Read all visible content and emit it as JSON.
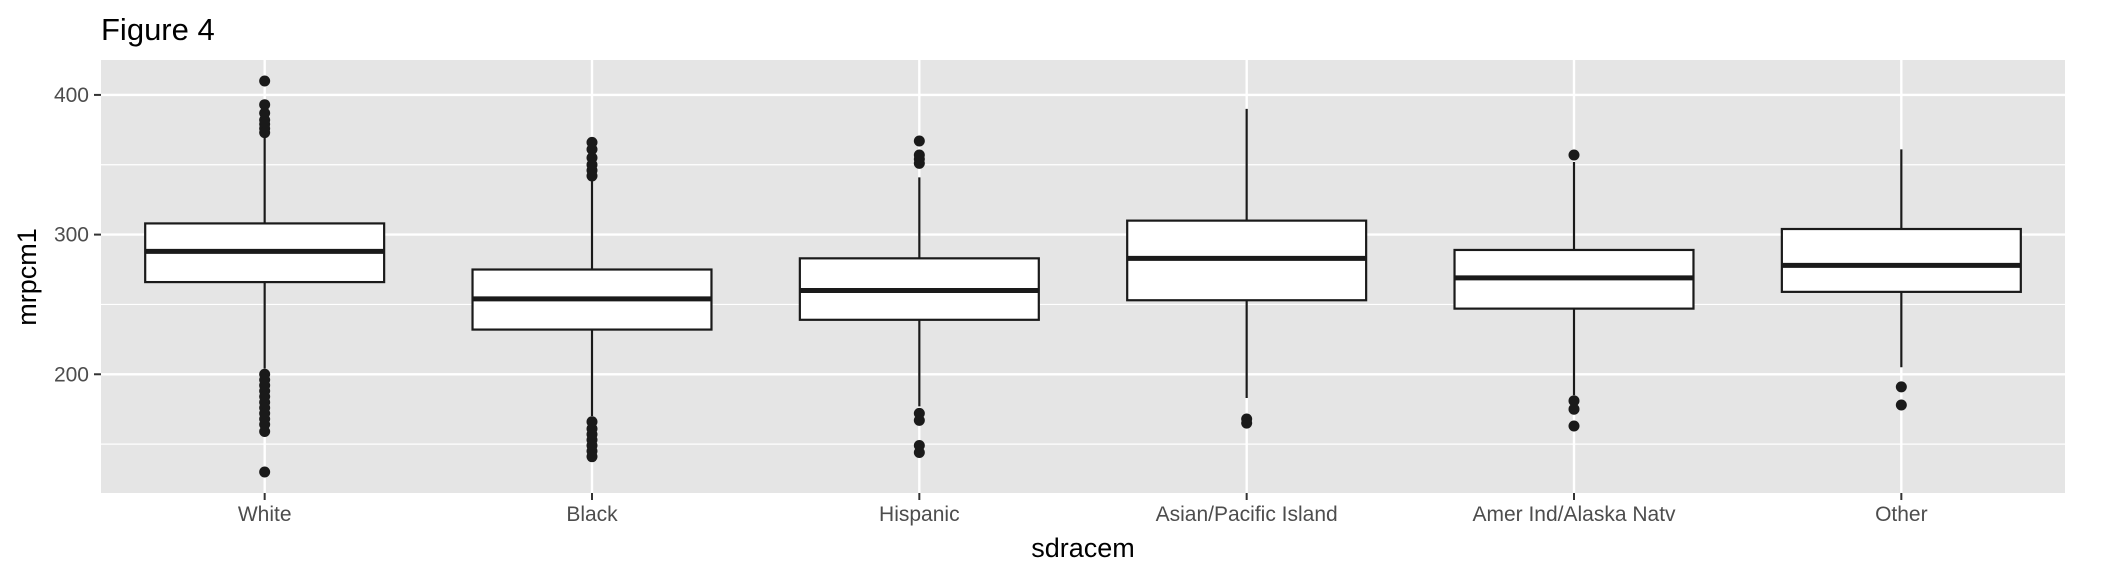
{
  "chart_data": {
    "type": "boxplot",
    "title": "Figure 4",
    "xlabel": "sdracem",
    "ylabel": "mrpcm1",
    "ylim": [
      115,
      425
    ],
    "yticks": [
      200,
      300,
      400
    ],
    "grid": true,
    "legend": "none",
    "colors": {
      "panel": "#e5e5e5",
      "grid": "#ffffff",
      "box_fill": "#ffffff",
      "box_stroke": "#1a1a1a",
      "points": "#1a1a1a",
      "tick_text": "#4d4d4d"
    },
    "categories": [
      "White",
      "Black",
      "Hispanic",
      "Asian/Pacific Island",
      "Amer Ind/Alaska Natv",
      "Other"
    ],
    "boxes": [
      {
        "category": "White",
        "q1": 266,
        "median": 288,
        "q3": 308,
        "whisker_low": 204,
        "whisker_high": 371,
        "outliers": [
          410,
          393,
          387,
          382,
          379,
          376,
          373,
          200,
          196,
          192,
          188,
          184,
          180,
          176,
          172,
          168,
          164,
          159,
          130
        ]
      },
      {
        "category": "Black",
        "q1": 232,
        "median": 254,
        "q3": 275,
        "whisker_low": 170,
        "whisker_high": 339,
        "outliers": [
          366,
          361,
          355,
          350,
          346,
          342,
          166,
          161,
          157,
          153,
          149,
          145,
          141
        ]
      },
      {
        "category": "Hispanic",
        "q1": 239,
        "median": 260,
        "q3": 283,
        "whisker_low": 177,
        "whisker_high": 341,
        "outliers": [
          367,
          357,
          354,
          351,
          172,
          167,
          149,
          144
        ]
      },
      {
        "category": "Asian/Pacific Island",
        "q1": 253,
        "median": 283,
        "q3": 310,
        "whisker_low": 183,
        "whisker_high": 390,
        "outliers": [
          168,
          165
        ]
      },
      {
        "category": "Amer Ind/Alaska Natv",
        "q1": 247,
        "median": 269,
        "q3": 289,
        "whisker_low": 185,
        "whisker_high": 352,
        "outliers": [
          357,
          181,
          175,
          163
        ]
      },
      {
        "category": "Other",
        "q1": 259,
        "median": 278,
        "q3": 304,
        "whisker_low": 205,
        "whisker_high": 361,
        "outliers": [
          191,
          178
        ]
      }
    ]
  }
}
